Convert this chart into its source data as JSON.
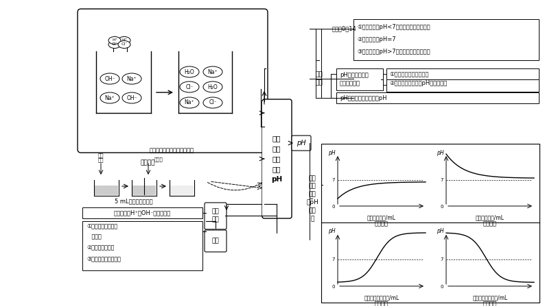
{
  "bg_color": "#ffffff",
  "center_text": [
    "酸碱",
    "中和",
    "与溶",
    "液的",
    "pH"
  ],
  "ph_box": "pH",
  "range_label": "范围：0－14",
  "range_items": [
    "②碱性溶液：pH>7，数值越大，碱性越强",
    "①中性溶液：pH=7",
    "①酸性溶液：pH<7，数值越小，酸性越强"
  ],
  "range_items_ordered": [
    "①酸性溶液：pH<7，数值越小，酸性越强",
    "②中性溶液：pH=7",
    "③碱性溶液：pH>7，数值越大，碱性越强"
  ],
  "detect_label": [
    "检测",
    "方法"
  ],
  "detect_sub1": "pH试纸：一蘸，\n二润、三比较",
  "detect_sub1a": "①测量值只能精确到整数",
  "detect_sub1b": "②若先润湿再检测，\npH可能会改变",
  "detect_sub2": "pH计：可精确测定溶液pH",
  "neutral_change_label": [
    "中和",
    "或稀",
    "释过",
    "程pH",
    "的变",
    "化"
  ],
  "neutralization_label": [
    "中和",
    "反应"
  ],
  "reaction_essence": "反应实质：H⁺与OH⁻结合生成水",
  "applications_label": "应用",
  "applications": [
    "①农业：调节土壤的",
    "   酸碱性",
    "②医药：中和胃酸",
    "③工业：处理工厂废水"
  ],
  "diagram_caption": "氢氧化钠与盐酸反应的示意图",
  "experiment_caption": "5 mL稀氢氧化钠溶液",
  "experiment_label": "实验操作",
  "acid_label": "酚酞\n溶液",
  "hcl_label": "稀盐酸",
  "graph1_xlab1": "滴加水的体积/mL",
  "graph1_xlab2": "酸中加水",
  "graph2_xlab1": "滴加水的体积/mL",
  "graph2_xlab2": "碱中加水",
  "graph3_xlab1": "滴加碱溶液的体积/mL",
  "graph3_xlab2": "酸中加碱",
  "graph4_xlab1": "滴加酸溶液的体积/mL",
  "graph4_xlab2": "碱中加酸"
}
